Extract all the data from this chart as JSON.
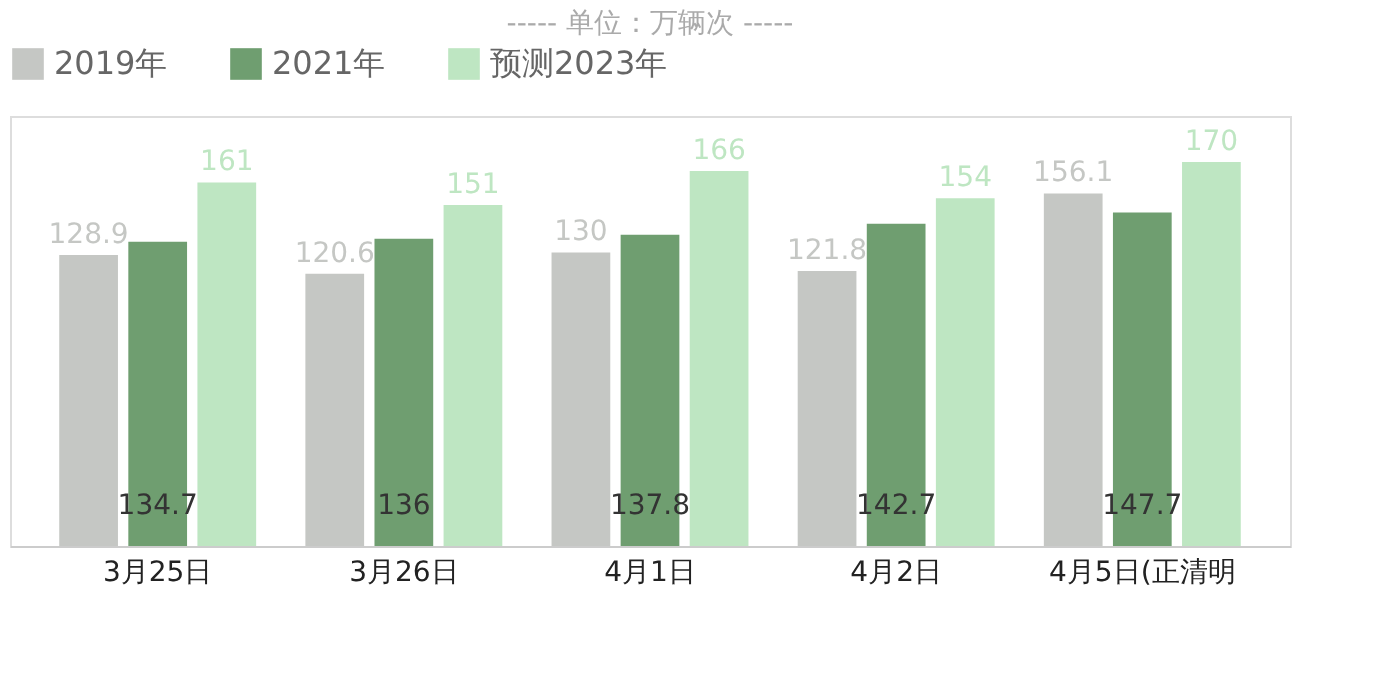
{
  "chart_data": {
    "type": "bar",
    "title": "----- 单位：万辆次 -----",
    "categories": [
      "3月25日",
      "3月26日",
      "4月1日",
      "4月2日",
      "4月5日(正清明"
    ],
    "series": [
      {
        "name": "2019年",
        "color": "#c5c7c4",
        "values": [
          128.9,
          120.6,
          130,
          121.8,
          156.1
        ]
      },
      {
        "name": "2021年",
        "color": "#6f9e70",
        "values": [
          134.7,
          136,
          137.8,
          142.7,
          147.7
        ]
      },
      {
        "name": "预测2023年",
        "color": "#bee6c2",
        "values": [
          161,
          151,
          166,
          154,
          170
        ]
      }
    ],
    "data_labels": true,
    "legend": "top",
    "grid": false
  }
}
